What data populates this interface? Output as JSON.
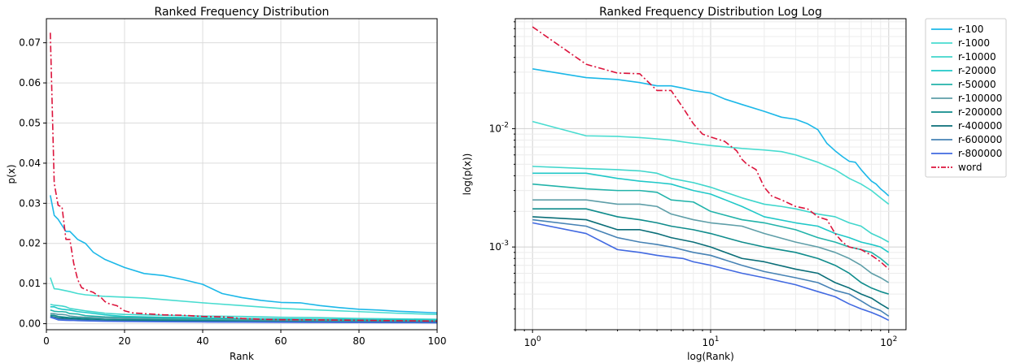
{
  "chart_data": [
    {
      "type": "line",
      "title": "Ranked Frequency Distribution",
      "xlabel": "Rank",
      "ylabel": "p(x)",
      "xlim": [
        0,
        100
      ],
      "ylim": [
        -0.0015,
        0.076
      ],
      "grid": true,
      "xticks": [
        0,
        20,
        40,
        60,
        80,
        100
      ],
      "xtick_labels": [
        "0",
        "20",
        "40",
        "60",
        "80",
        "100"
      ],
      "yticks": [
        0,
        0.01,
        0.02,
        0.03,
        0.04,
        0.05,
        0.06,
        0.07
      ],
      "ytick_labels": [
        "0.00",
        "0.01",
        "0.02",
        "0.03",
        "0.04",
        "0.05",
        "0.06",
        "0.07"
      ]
    },
    {
      "type": "line",
      "title": "Ranked Frequency Distribution Log Log",
      "xlabel": "log(Rank)",
      "ylabel": "log(p(x))",
      "xscale": "log",
      "yscale": "log",
      "xlim": [
        0.8,
        125
      ],
      "ylim": [
        0.0002,
        0.085
      ],
      "grid": true,
      "legend_position": "outside-right",
      "xticks": [
        1,
        10,
        100
      ],
      "xtick_labels": [
        "10^0",
        "10^1",
        "10^2"
      ],
      "yticks": [
        0.001,
        0.01
      ],
      "ytick_labels": [
        "10^-3",
        "10^-2"
      ]
    }
  ],
  "series": [
    {
      "name": "r-100",
      "color": "#1cb8e8",
      "style": "solid",
      "points": [
        [
          1,
          0.032
        ],
        [
          2,
          0.027
        ],
        [
          3,
          0.026
        ],
        [
          4,
          0.0245
        ],
        [
          5,
          0.023
        ],
        [
          6,
          0.023
        ],
        [
          7,
          0.022
        ],
        [
          8,
          0.021
        ],
        [
          10,
          0.02
        ],
        [
          12,
          0.0178
        ],
        [
          15,
          0.016
        ],
        [
          20,
          0.014
        ],
        [
          25,
          0.0125
        ],
        [
          30,
          0.012
        ],
        [
          35,
          0.011
        ],
        [
          40,
          0.0098
        ],
        [
          45,
          0.0075
        ],
        [
          50,
          0.0065
        ],
        [
          55,
          0.0058
        ],
        [
          60,
          0.0053
        ],
        [
          65,
          0.0052
        ],
        [
          70,
          0.0045
        ],
        [
          75,
          0.004
        ],
        [
          80,
          0.0036
        ],
        [
          85,
          0.0034
        ],
        [
          90,
          0.0031
        ],
        [
          95,
          0.0029
        ],
        [
          100,
          0.0027
        ]
      ]
    },
    {
      "name": "r-1000",
      "color": "#48dcd0",
      "style": "solid",
      "points": [
        [
          1,
          0.0115
        ],
        [
          2,
          0.0087
        ],
        [
          3,
          0.0086
        ],
        [
          4,
          0.0084
        ],
        [
          5,
          0.0082
        ],
        [
          6,
          0.008
        ],
        [
          8,
          0.0075
        ],
        [
          10,
          0.0072
        ],
        [
          15,
          0.0068
        ],
        [
          20,
          0.0066
        ],
        [
          25,
          0.0064
        ],
        [
          30,
          0.006
        ],
        [
          40,
          0.0052
        ],
        [
          50,
          0.0045
        ],
        [
          60,
          0.0038
        ],
        [
          70,
          0.0034
        ],
        [
          80,
          0.003
        ],
        [
          90,
          0.0026
        ],
        [
          100,
          0.0023
        ]
      ]
    },
    {
      "name": "r-10000",
      "color": "#40d6cc",
      "style": "solid",
      "points": [
        [
          1,
          0.0048
        ],
        [
          2,
          0.0046
        ],
        [
          3,
          0.0045
        ],
        [
          4,
          0.0044
        ],
        [
          5,
          0.0042
        ],
        [
          6,
          0.0038
        ],
        [
          8,
          0.0035
        ],
        [
          10,
          0.0032
        ],
        [
          15,
          0.0026
        ],
        [
          20,
          0.0023
        ],
        [
          25,
          0.0022
        ],
        [
          30,
          0.0021
        ],
        [
          40,
          0.0019
        ],
        [
          50,
          0.0018
        ],
        [
          60,
          0.0016
        ],
        [
          70,
          0.0015
        ],
        [
          80,
          0.0013
        ],
        [
          90,
          0.0012
        ],
        [
          100,
          0.0011
        ]
      ]
    },
    {
      "name": "r-20000",
      "color": "#20c8c8",
      "style": "solid",
      "points": [
        [
          1,
          0.0042
        ],
        [
          2,
          0.0042
        ],
        [
          3,
          0.0038
        ],
        [
          4,
          0.0036
        ],
        [
          5,
          0.0035
        ],
        [
          6,
          0.0034
        ],
        [
          8,
          0.003
        ],
        [
          10,
          0.0028
        ],
        [
          15,
          0.0022
        ],
        [
          20,
          0.0018
        ],
        [
          30,
          0.0016
        ],
        [
          40,
          0.0015
        ],
        [
          50,
          0.0013
        ],
        [
          60,
          0.0012
        ],
        [
          70,
          0.0011
        ],
        [
          80,
          0.00105
        ],
        [
          90,
          0.001
        ],
        [
          100,
          0.0009
        ]
      ]
    },
    {
      "name": "r-50000",
      "color": "#22b3aa",
      "style": "solid",
      "points": [
        [
          1,
          0.0034
        ],
        [
          2,
          0.0031
        ],
        [
          3,
          0.003
        ],
        [
          4,
          0.003
        ],
        [
          5,
          0.0029
        ],
        [
          6,
          0.0025
        ],
        [
          8,
          0.0024
        ],
        [
          10,
          0.002
        ],
        [
          15,
          0.0017
        ],
        [
          20,
          0.0016
        ],
        [
          30,
          0.0014
        ],
        [
          40,
          0.0012
        ],
        [
          50,
          0.0011
        ],
        [
          60,
          0.001
        ],
        [
          70,
          0.00095
        ],
        [
          80,
          0.0009
        ],
        [
          90,
          0.0008
        ],
        [
          100,
          0.0007
        ]
      ]
    },
    {
      "name": "r-100000",
      "color": "#5e9ea8",
      "style": "solid",
      "points": [
        [
          1,
          0.0025
        ],
        [
          2,
          0.0025
        ],
        [
          3,
          0.0023
        ],
        [
          4,
          0.0023
        ],
        [
          5,
          0.0022
        ],
        [
          6,
          0.0019
        ],
        [
          8,
          0.0017
        ],
        [
          10,
          0.0016
        ],
        [
          15,
          0.0015
        ],
        [
          20,
          0.0013
        ],
        [
          30,
          0.0011
        ],
        [
          40,
          0.001
        ],
        [
          50,
          0.0009
        ],
        [
          60,
          0.0008
        ],
        [
          70,
          0.0007
        ],
        [
          80,
          0.0006
        ],
        [
          90,
          0.00055
        ],
        [
          100,
          0.0005
        ]
      ]
    },
    {
      "name": "r-200000",
      "color": "#0f8c8c",
      "style": "solid",
      "points": [
        [
          1,
          0.0021
        ],
        [
          2,
          0.0021
        ],
        [
          3,
          0.0018
        ],
        [
          4,
          0.0017
        ],
        [
          5,
          0.0016
        ],
        [
          6,
          0.0015
        ],
        [
          8,
          0.0014
        ],
        [
          10,
          0.0013
        ],
        [
          15,
          0.0011
        ],
        [
          20,
          0.001
        ],
        [
          30,
          0.0009
        ],
        [
          40,
          0.0008
        ],
        [
          50,
          0.0007
        ],
        [
          60,
          0.0006
        ],
        [
          70,
          0.0005
        ],
        [
          80,
          0.00045
        ],
        [
          90,
          0.00042
        ],
        [
          100,
          0.0004
        ]
      ]
    },
    {
      "name": "r-400000",
      "color": "#0a6e78",
      "style": "solid",
      "points": [
        [
          1,
          0.0018
        ],
        [
          2,
          0.0017
        ],
        [
          3,
          0.0014
        ],
        [
          4,
          0.0014
        ],
        [
          5,
          0.0013
        ],
        [
          6,
          0.0012
        ],
        [
          8,
          0.0011
        ],
        [
          10,
          0.001
        ],
        [
          15,
          0.0008
        ],
        [
          20,
          0.00075
        ],
        [
          30,
          0.00065
        ],
        [
          40,
          0.0006
        ],
        [
          50,
          0.0005
        ],
        [
          60,
          0.00045
        ],
        [
          70,
          0.0004
        ],
        [
          80,
          0.00037
        ],
        [
          90,
          0.00033
        ],
        [
          100,
          0.0003
        ]
      ]
    },
    {
      "name": "r-600000",
      "color": "#4682b4",
      "style": "solid",
      "points": [
        [
          1,
          0.0017
        ],
        [
          2,
          0.0015
        ],
        [
          3,
          0.0012
        ],
        [
          4,
          0.0011
        ],
        [
          5,
          0.00105
        ],
        [
          6,
          0.001
        ],
        [
          8,
          0.0009
        ],
        [
          10,
          0.00085
        ],
        [
          15,
          0.0007
        ],
        [
          20,
          0.00062
        ],
        [
          30,
          0.00055
        ],
        [
          40,
          0.0005
        ],
        [
          50,
          0.00043
        ],
        [
          60,
          0.0004
        ],
        [
          70,
          0.00035
        ],
        [
          80,
          0.00031
        ],
        [
          90,
          0.00029
        ],
        [
          100,
          0.00026
        ]
      ]
    },
    {
      "name": "r-800000",
      "color": "#4169e1",
      "style": "solid",
      "points": [
        [
          1,
          0.0016
        ],
        [
          2,
          0.0013
        ],
        [
          3,
          0.00095
        ],
        [
          4,
          0.0009
        ],
        [
          5,
          0.00085
        ],
        [
          6,
          0.00082
        ],
        [
          7,
          0.0008
        ],
        [
          8,
          0.00075
        ],
        [
          10,
          0.0007
        ],
        [
          15,
          0.0006
        ],
        [
          20,
          0.00055
        ],
        [
          30,
          0.00048
        ],
        [
          40,
          0.00042
        ],
        [
          50,
          0.00038
        ],
        [
          60,
          0.00033
        ],
        [
          70,
          0.0003
        ],
        [
          80,
          0.00028
        ],
        [
          90,
          0.00026
        ],
        [
          100,
          0.00024
        ]
      ]
    },
    {
      "name": "word",
      "color": "#dc143c",
      "style": "dashdot",
      "points": [
        [
          1,
          0.0725
        ],
        [
          2,
          0.035
        ],
        [
          3,
          0.0295
        ],
        [
          4,
          0.0291
        ],
        [
          5,
          0.021
        ],
        [
          6,
          0.021
        ],
        [
          7,
          0.015
        ],
        [
          8,
          0.011
        ],
        [
          9,
          0.009
        ],
        [
          10,
          0.0085
        ],
        [
          12,
          0.0078
        ],
        [
          14,
          0.0065
        ],
        [
          15,
          0.0055
        ],
        [
          16,
          0.005
        ],
        [
          18,
          0.0045
        ],
        [
          20,
          0.0032
        ],
        [
          22,
          0.0027
        ],
        [
          25,
          0.0025
        ],
        [
          30,
          0.0022
        ],
        [
          35,
          0.0021
        ],
        [
          40,
          0.0018
        ],
        [
          45,
          0.0017
        ],
        [
          50,
          0.0013
        ],
        [
          55,
          0.0011
        ],
        [
          60,
          0.001
        ],
        [
          70,
          0.00095
        ],
        [
          80,
          0.00085
        ],
        [
          90,
          0.00075
        ],
        [
          100,
          0.00065
        ]
      ]
    }
  ]
}
